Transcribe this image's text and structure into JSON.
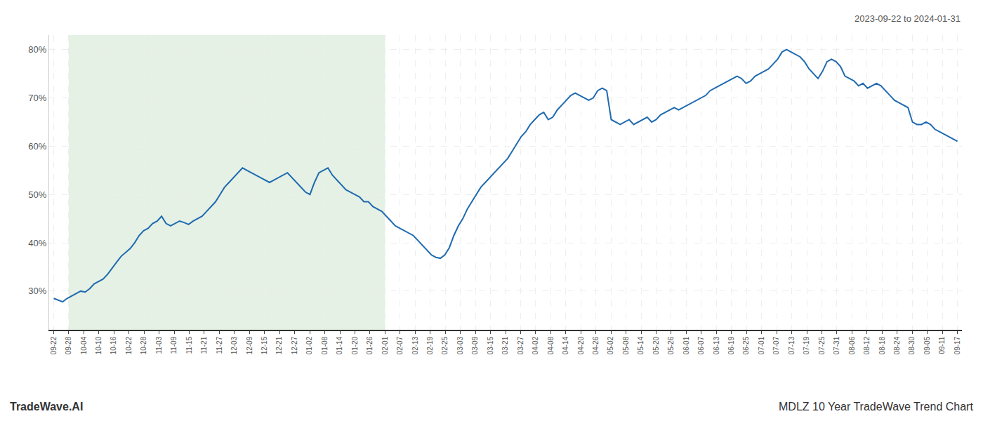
{
  "chart_data": {
    "type": "line",
    "title": "MDLZ 10 Year TradeWave Trend Chart",
    "subtitle": "2023-09-22 to 2024-01-31",
    "annotations": [
      "TradeWave.AI"
    ],
    "color": "#1f6ab0",
    "grid": true,
    "shade": {
      "xlim": [
        1,
        22
      ],
      "color": "#d6ead6"
    },
    "xlim": [
      -0.3,
      60.3
    ],
    "xticks": [
      {
        "value": 0,
        "label": "09-22"
      },
      {
        "value": 1,
        "label": "09-28"
      },
      {
        "value": 2,
        "label": "10-04"
      },
      {
        "value": 3,
        "label": "10-10"
      },
      {
        "value": 4,
        "label": "10-16"
      },
      {
        "value": 5,
        "label": "10-22"
      },
      {
        "value": 6,
        "label": "10-28"
      },
      {
        "value": 7,
        "label": "11-03"
      },
      {
        "value": 8,
        "label": "11-09"
      },
      {
        "value": 9,
        "label": "11-15"
      },
      {
        "value": 10,
        "label": "11-21"
      },
      {
        "value": 11,
        "label": "11-27"
      },
      {
        "value": 12,
        "label": "12-03"
      },
      {
        "value": 13,
        "label": "12-09"
      },
      {
        "value": 14,
        "label": "12-15"
      },
      {
        "value": 15,
        "label": "12-21"
      },
      {
        "value": 16,
        "label": "12-27"
      },
      {
        "value": 17,
        "label": "01-02"
      },
      {
        "value": 18,
        "label": "01-08"
      },
      {
        "value": 19,
        "label": "01-14"
      },
      {
        "value": 20,
        "label": "01-20"
      },
      {
        "value": 21,
        "label": "01-26"
      },
      {
        "value": 22,
        "label": "02-01"
      },
      {
        "value": 23,
        "label": "02-07"
      },
      {
        "value": 24,
        "label": "02-13"
      },
      {
        "value": 25,
        "label": "02-19"
      },
      {
        "value": 26,
        "label": "02-25"
      },
      {
        "value": 27,
        "label": "03-03"
      },
      {
        "value": 28,
        "label": "03-09"
      },
      {
        "value": 29,
        "label": "03-15"
      },
      {
        "value": 30,
        "label": "03-21"
      },
      {
        "value": 31,
        "label": "03-27"
      },
      {
        "value": 32,
        "label": "04-02"
      },
      {
        "value": 33,
        "label": "04-08"
      },
      {
        "value": 34,
        "label": "04-14"
      },
      {
        "value": 35,
        "label": "04-20"
      },
      {
        "value": 36,
        "label": "04-26"
      },
      {
        "value": 37,
        "label": "05-02"
      },
      {
        "value": 38,
        "label": "05-08"
      },
      {
        "value": 39,
        "label": "05-14"
      },
      {
        "value": 40,
        "label": "05-20"
      },
      {
        "value": 41,
        "label": "05-26"
      },
      {
        "value": 42,
        "label": "06-01"
      },
      {
        "value": 43,
        "label": "06-07"
      },
      {
        "value": 44,
        "label": "06-13"
      },
      {
        "value": 45,
        "label": "06-19"
      },
      {
        "value": 46,
        "label": "06-25"
      },
      {
        "value": 47,
        "label": "07-01"
      },
      {
        "value": 48,
        "label": "07-07"
      },
      {
        "value": 49,
        "label": "07-13"
      },
      {
        "value": 50,
        "label": "07-19"
      },
      {
        "value": 51,
        "label": "07-25"
      },
      {
        "value": 52,
        "label": "07-31"
      },
      {
        "value": 53,
        "label": "08-06"
      },
      {
        "value": 54,
        "label": "08-12"
      },
      {
        "value": 55,
        "label": "08-18"
      },
      {
        "value": 56,
        "label": "08-24"
      },
      {
        "value": 57,
        "label": "08-30"
      },
      {
        "value": 58,
        "label": "09-05"
      },
      {
        "value": 59,
        "label": "09-11"
      },
      {
        "value": 60,
        "label": "09-17"
      }
    ],
    "ylim": [
      22,
      83
    ],
    "yticks": [
      {
        "value": 30,
        "label": "30%"
      },
      {
        "value": 40,
        "label": "40%"
      },
      {
        "value": 50,
        "label": "50%"
      },
      {
        "value": 60,
        "label": "60%"
      },
      {
        "value": 70,
        "label": "70%"
      },
      {
        "value": 80,
        "label": "80%"
      }
    ],
    "x": [
      0,
      0.298507,
      0.597015,
      0.895522,
      1.19403,
      1.492537,
      1.791045,
      2.089552,
      2.38806,
      2.686567,
      2.985075,
      3.283582,
      3.58209,
      3.880597,
      4.179104,
      4.477612,
      4.776119,
      5.074627,
      5.373134,
      5.671642,
      5.970149,
      6.268657,
      6.567164,
      6.865672,
      7.164179,
      7.462687,
      7.761194,
      8.059701,
      8.358209,
      8.656716,
      8.955224,
      9.253731,
      9.552239,
      9.850746,
      10.149254,
      10.447761,
      10.746269,
      11.044776,
      11.343284,
      11.641791,
      11.940299,
      12.238806,
      12.537313,
      12.835821,
      13.134328,
      13.432836,
      13.731343,
      14.029851,
      14.328358,
      14.626866,
      14.925373,
      15.223881,
      15.522388,
      15.820896,
      16.119403,
      16.41791,
      16.716418,
      17.014925,
      17.313433,
      17.61194,
      17.910448,
      18.208955,
      18.507463,
      18.80597,
      19.104478,
      19.402985,
      19.701493,
      20,
      20.298507,
      20.597015,
      20.895522,
      21.19403,
      21.492537,
      21.791045,
      22.089552,
      22.38806,
      22.686567,
      22.985075,
      23.283582,
      23.58209,
      23.880597,
      24.179104,
      24.477612,
      24.776119,
      25.074627,
      25.373134,
      25.671642,
      25.970149,
      26.268657,
      26.567164,
      26.865672,
      27.164179,
      27.462687,
      27.761194,
      28.059701,
      28.358209,
      28.656716,
      28.955224,
      29.253731,
      29.552239,
      29.850746,
      30.149254,
      30.447761,
      30.746269,
      31.044776,
      31.343284,
      31.641791,
      31.940299,
      32.238806,
      32.537313,
      32.835821,
      33.134328,
      33.432836,
      33.731343,
      34.029851,
      34.328358,
      34.626866,
      34.925373,
      35.223881,
      35.522388,
      35.820896,
      36.119403,
      36.41791,
      36.716418,
      37.014925,
      37.313433,
      37.61194,
      37.910448,
      38.208955,
      38.507463,
      38.80597,
      39.104478,
      39.402985,
      39.701493,
      40,
      40.298507,
      40.597015,
      40.895522,
      41.19403,
      41.492537,
      41.791045,
      42.089552,
      42.38806,
      42.686567,
      42.985075,
      43.283582,
      43.58209,
      43.880597,
      44.179104,
      44.477612,
      44.776119,
      45.074627,
      45.373134,
      45.671642,
      45.970149,
      46.268657,
      46.567164,
      46.865672,
      47.164179,
      47.462687,
      47.761194,
      48.059701,
      48.358209,
      48.656716,
      48.955224,
      49.253731,
      49.552239,
      49.850746,
      50.149254,
      50.447761,
      50.746269,
      51.044776,
      51.343284,
      51.641791,
      51.940299,
      52.238806,
      52.537313,
      52.835821,
      53.134328,
      53.432836,
      53.731343,
      54.029851,
      54.328358,
      54.626866,
      54.925373,
      55.223881,
      55.522388,
      55.820896,
      56.119403,
      56.41791,
      56.716418,
      57.014925,
      57.313433,
      57.61194,
      57.910448,
      58.208955,
      58.507463,
      58.80597,
      59.104478,
      59.402985,
      59.701493,
      60
    ],
    "values": [
      28.5,
      28.2,
      27.8,
      28.5,
      29.0,
      29.5,
      30.0,
      29.8,
      30.5,
      31.5,
      32.0,
      32.5,
      33.5,
      34.8,
      36.0,
      37.2,
      38.0,
      38.8,
      40.0,
      41.5,
      42.5,
      43.0,
      44.0,
      44.5,
      45.5,
      44.0,
      43.5,
      44.0,
      44.5,
      44.2,
      43.8,
      44.5,
      45.0,
      45.5,
      46.5,
      47.5,
      48.5,
      50.0,
      51.5,
      52.5,
      53.5,
      54.5,
      55.5,
      55.0,
      54.5,
      54.0,
      53.5,
      53.0,
      52.5,
      53.0,
      53.5,
      54.0,
      54.5,
      53.5,
      52.5,
      51.5,
      50.5,
      50.0,
      52.5,
      54.5,
      55.0,
      55.5,
      54.0,
      53.0,
      52.0,
      51.0,
      50.5,
      50.0,
      49.5,
      48.5,
      48.5,
      47.5,
      47.0,
      46.5,
      45.5,
      44.5,
      43.5,
      43.0,
      42.5,
      42.0,
      41.5,
      40.5,
      39.5,
      38.5,
      37.5,
      37.0,
      36.8,
      37.5,
      39.0,
      41.5,
      43.5,
      45.0,
      47.0,
      48.5,
      50.0,
      51.5,
      52.5,
      53.5,
      54.5,
      55.5,
      56.5,
      57.5,
      59.0,
      60.5,
      62.0,
      63.0,
      64.5,
      65.5,
      66.5,
      67.0,
      65.5,
      66.0,
      67.5,
      68.5,
      69.5,
      70.5,
      71.0,
      70.5,
      70.0,
      69.5,
      70.0,
      71.5,
      72.0,
      71.5,
      65.5,
      65.0,
      64.5,
      65.0,
      65.5,
      64.5,
      65.0,
      65.5,
      66.0,
      65.0,
      65.5,
      66.5,
      67.0,
      67.5,
      68.0,
      67.5,
      68.0,
      68.5,
      69.0,
      69.5,
      70.0,
      70.5,
      71.5,
      72.0,
      72.5,
      73.0,
      73.5,
      74.0,
      74.5,
      74.0,
      73.0,
      73.5,
      74.5,
      75.0,
      75.5,
      76.0,
      77.0,
      78.0,
      79.5,
      80.0,
      79.5,
      79.0,
      78.5,
      77.5,
      76.0,
      75.0,
      74.0,
      75.5,
      77.5,
      78.0,
      77.5,
      76.5,
      74.5,
      74.0,
      73.5,
      72.5,
      73.0,
      72.0,
      72.5,
      73.0,
      72.5,
      71.5,
      70.5,
      69.5,
      69.0,
      68.5,
      68.0,
      65.0,
      64.5,
      64.5,
      65.0,
      64.5,
      63.5,
      63.0,
      62.5,
      62.0,
      61.5,
      61.0
    ]
  }
}
